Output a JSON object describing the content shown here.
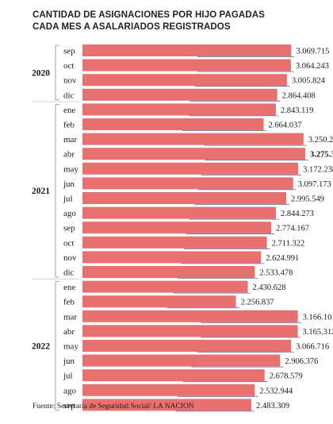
{
  "title": "CANTIDAD DE ASIGNACIONES POR HIJO PAGADAS\nCADA MES A ASALARIADOS REGISTRADOS",
  "source": "Fuente: Secretaría de Seguridad Social/ LA NACION",
  "colors": {
    "bar": "#e8706f",
    "bracket": "#888888",
    "text": "#1a1a1a",
    "underline": "#5b6aa8"
  },
  "chart_data": {
    "type": "bar",
    "orientation": "horizontal",
    "title": "CANTIDAD DE ASIGNACIONES POR HIJO PAGADAS CADA MES A ASALARIADOS REGISTRADOS",
    "xlabel": "",
    "ylabel": "",
    "highlight": "abr 2021",
    "groups": [
      {
        "year": "2020",
        "items": [
          {
            "month": "sep",
            "value": 3069715,
            "label": "3.069.715"
          },
          {
            "month": "oct",
            "value": 3064243,
            "label": "3.064.243"
          },
          {
            "month": "nov",
            "value": 3005824,
            "label": "3.005.824"
          },
          {
            "month": "dic",
            "value": 2864408,
            "label": "2.864.408"
          }
        ]
      },
      {
        "year": "2021",
        "items": [
          {
            "month": "ene",
            "value": 2843119,
            "label": "2.843.119"
          },
          {
            "month": "feb",
            "value": 2664037,
            "label": "2.664.037"
          },
          {
            "month": "mar",
            "value": 3250261,
            "label": "3.250.261"
          },
          {
            "month": "abr",
            "value": 3275340,
            "label": "3.275.340",
            "bold": true
          },
          {
            "month": "may",
            "value": 3172238,
            "label": "3.172.238"
          },
          {
            "month": "jun",
            "value": 3097173,
            "label": "3.097.173"
          },
          {
            "month": "jul",
            "value": 2995549,
            "label": "2.995.549"
          },
          {
            "month": "ago",
            "value": 2844273,
            "label": "2.844.273"
          },
          {
            "month": "sep",
            "value": 2774167,
            "label": "2.774.167"
          },
          {
            "month": "oct",
            "value": 2711322,
            "label": "2.711.322"
          },
          {
            "month": "nov",
            "value": 2624991,
            "label": "2.624.991"
          },
          {
            "month": "dic",
            "value": 2533478,
            "label": "2.533.478"
          }
        ]
      },
      {
        "year": "2022",
        "items": [
          {
            "month": "ene",
            "value": 2430628,
            "label": "2.430.628"
          },
          {
            "month": "feb",
            "value": 2256837,
            "label": "2.256.837"
          },
          {
            "month": "mar",
            "value": 3166101,
            "label": "3.166.101"
          },
          {
            "month": "abr",
            "value": 3165312,
            "label": "3.165.312"
          },
          {
            "month": "may",
            "value": 3066716,
            "label": "3.066.716"
          },
          {
            "month": "jun",
            "value": 2906376,
            "label": "2.906.376"
          },
          {
            "month": "jul",
            "value": 2678579,
            "label": "2.678.579"
          },
          {
            "month": "ago",
            "value": 2532944,
            "label": "2.532.944"
          },
          {
            "month": "sep",
            "value": 2483309,
            "label": "2.483.309"
          }
        ]
      }
    ]
  }
}
